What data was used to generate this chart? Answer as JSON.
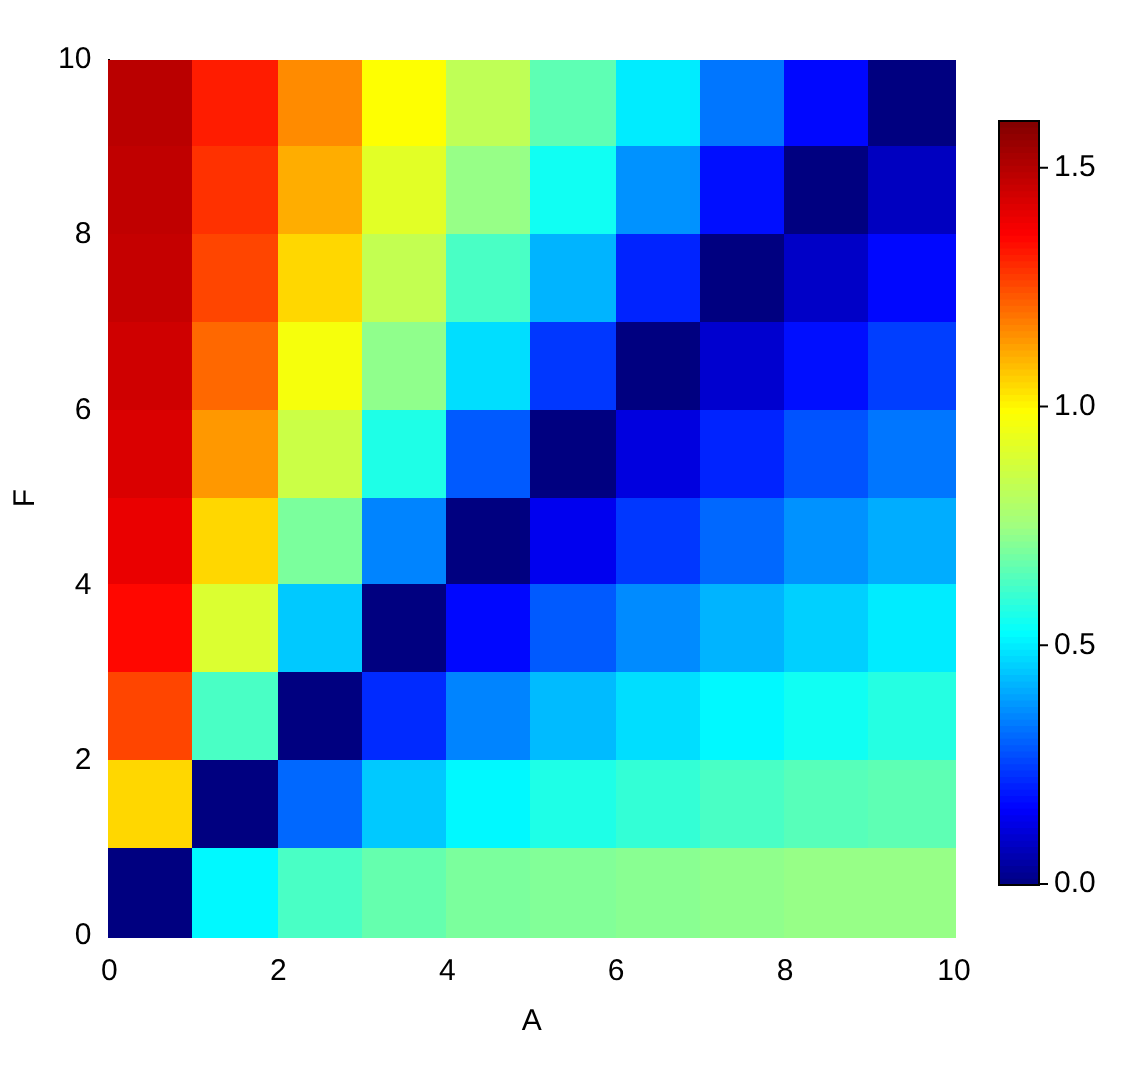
{
  "chart_data": {
    "type": "heatmap",
    "xlabel": "A",
    "ylabel": "F",
    "x": [
      0.5,
      1.5,
      2.5,
      3.5,
      4.5,
      5.5,
      6.5,
      7.5,
      8.5,
      9.5
    ],
    "y": [
      9.5,
      8.5,
      7.5,
      6.5,
      5.5,
      4.5,
      3.5,
      2.5,
      1.5,
      0.5
    ],
    "cells": [
      [
        1.49,
        1.32,
        1.16,
        0.99,
        0.83,
        0.66,
        0.5,
        0.33,
        0.17,
        0
      ],
      [
        1.48,
        1.29,
        1.11,
        0.92,
        0.74,
        0.55,
        0.37,
        0.18,
        0,
        0.08
      ],
      [
        1.47,
        1.26,
        1.05,
        0.84,
        0.63,
        0.42,
        0.21,
        0,
        0.09,
        0.17
      ],
      [
        1.45,
        1.21,
        0.97,
        0.73,
        0.48,
        0.24,
        0,
        0.1,
        0.18,
        0.25
      ],
      [
        1.43,
        1.14,
        0.86,
        0.57,
        0.29,
        0,
        0.12,
        0.21,
        0.28,
        0.33
      ],
      [
        1.4,
        1.05,
        0.7,
        0.35,
        0,
        0.14,
        0.24,
        0.31,
        0.37,
        0.41
      ],
      [
        1.35,
        0.9,
        0.45,
        0,
        0.17,
        0.29,
        0.36,
        0.42,
        0.46,
        0.5
      ],
      [
        1.26,
        0.63,
        0,
        0.22,
        0.35,
        0.43,
        0.48,
        0.52,
        0.55,
        0.58
      ],
      [
        1.05,
        0,
        0.31,
        0.45,
        0.52,
        0.57,
        0.6,
        0.63,
        0.65,
        0.66
      ],
      [
        0,
        0.52,
        0.63,
        0.67,
        0.7,
        0.71,
        0.72,
        0.73,
        0.74,
        0.74
      ]
    ],
    "xlim": [
      0,
      10
    ],
    "ylim": [
      0,
      10
    ],
    "xticks": [
      0,
      2,
      4,
      6,
      8,
      10
    ],
    "yticks": [
      0,
      2,
      4,
      6,
      8,
      10
    ],
    "clim": [
      0,
      1.6
    ],
    "cticks": [
      {
        "value": 0,
        "label": "0.0"
      },
      {
        "value": 0.5,
        "label": "0.5"
      },
      {
        "value": 1,
        "label": "1.0"
      },
      {
        "value": 1.5,
        "label": "1.5"
      }
    ]
  }
}
